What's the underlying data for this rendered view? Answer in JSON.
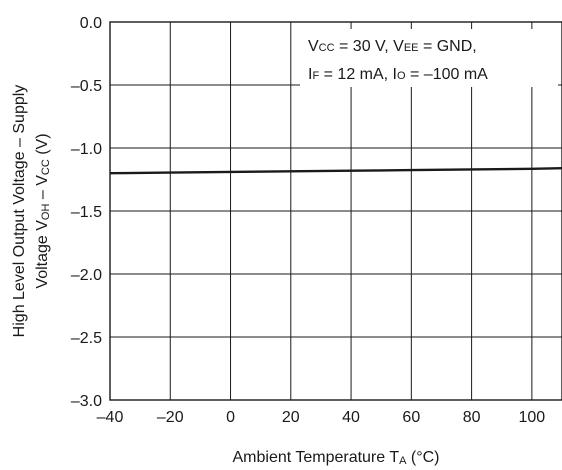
{
  "chart_data": {
    "type": "line",
    "title": "",
    "xlabel": {
      "main": "Ambient Temperature  T",
      "sub": "A",
      "suffix": " (°C)"
    },
    "ylabel": {
      "line1": "High Level Output Voltage – Supply",
      "line2_prefix": "Voltage  V",
      "line2_sub1": "OH",
      "line2_mid": " – V",
      "line2_sub2": "CC",
      "line2_suffix": " (V)"
    },
    "xlim": [
      -40,
      110
    ],
    "ylim": [
      -3.0,
      0.0
    ],
    "xticks": [
      -40,
      -20,
      0,
      20,
      40,
      60,
      80,
      100
    ],
    "xtick_labels": [
      "–40",
      "–20",
      "0",
      "20",
      "40",
      "60",
      "80",
      "100"
    ],
    "yticks": [
      0.0,
      -0.5,
      -1.0,
      -1.5,
      -2.0,
      -2.5,
      -3.0
    ],
    "ytick_labels": [
      "0.0",
      "–0.5",
      "–1.0",
      "–1.5",
      "–2.0",
      "–2.5",
      "–3.0"
    ],
    "grid": true,
    "series": [
      {
        "x": [
          -40,
          -20,
          0,
          20,
          40,
          60,
          80,
          100,
          110
        ],
        "y": [
          -1.2,
          -1.195,
          -1.19,
          -1.185,
          -1.18,
          -1.175,
          -1.17,
          -1.165,
          -1.16
        ]
      }
    ],
    "annotation": {
      "line1": [
        {
          "t": "V"
        },
        {
          "t": "CC",
          "sub": true
        },
        {
          "t": " = 30 V, V"
        },
        {
          "t": "EE",
          "sub": true
        },
        {
          "t": " = GND,"
        }
      ],
      "line2": [
        {
          "t": "I"
        },
        {
          "t": "F",
          "sub": true
        },
        {
          "t": " = 12 mA, I"
        },
        {
          "t": "O",
          "sub": true
        },
        {
          "t": " = –100 mA"
        }
      ]
    }
  }
}
